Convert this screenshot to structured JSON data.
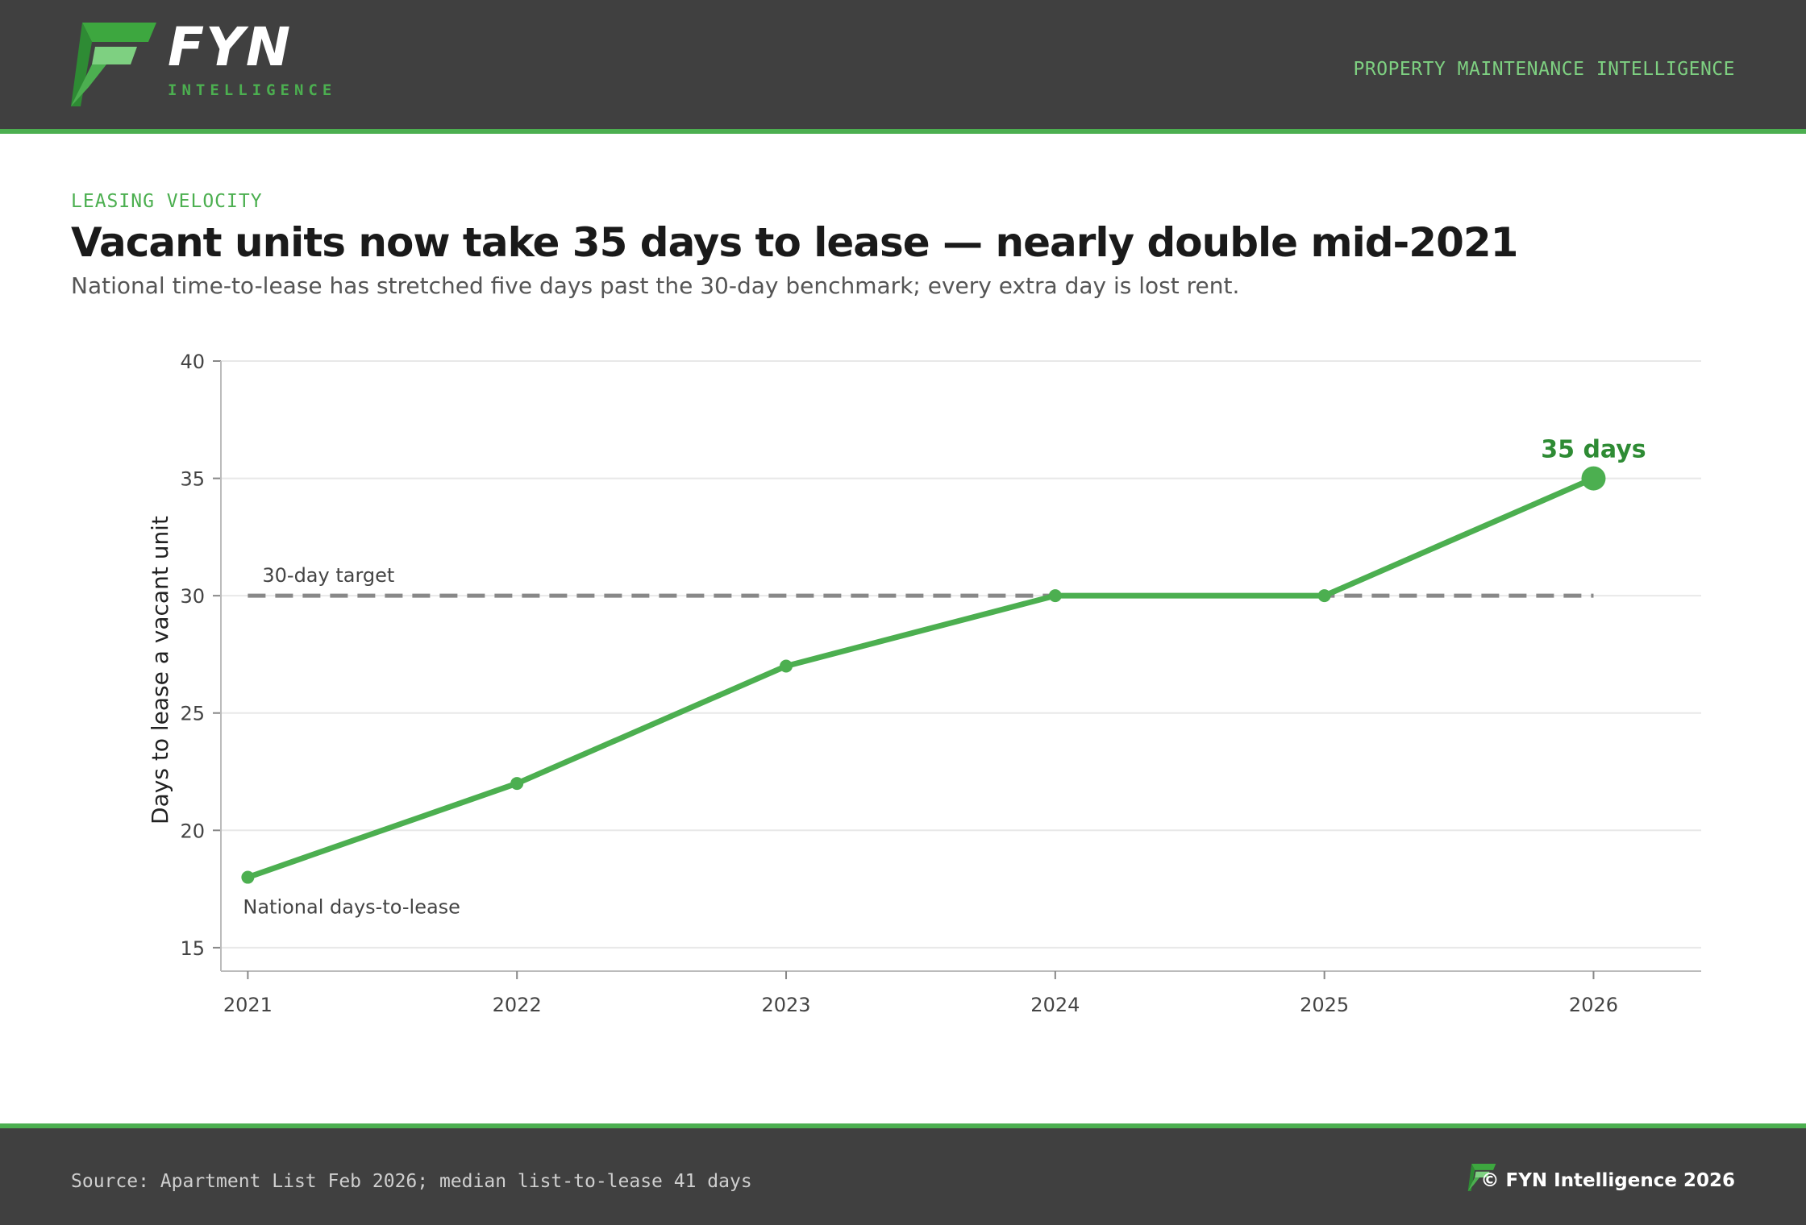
{
  "brand": {
    "name": "FYN",
    "tagline": "INTELLIGENCE",
    "header_tag": "PROPERTY MAINTENANCE INTELLIGENCE",
    "logo_icon": "fyn-f-logo-icon"
  },
  "eyebrow": "LEASING VELOCITY",
  "title": "Vacant units now take 35 days to lease — nearly double mid-2021",
  "subtitle": "National time-to-lease has stretched five days past the 30-day benchmark; every extra day is lost rent.",
  "colors": {
    "accent": "#4caf50",
    "accent_dark": "#2e8b34",
    "header_bg": "#404040",
    "target_line": "#888888"
  },
  "chart_data": {
    "type": "line",
    "x": [
      2021,
      2022,
      2023,
      2024,
      2025,
      2026
    ],
    "series": [
      {
        "name": "National days-to-lease",
        "values": [
          18,
          22,
          27,
          30,
          30,
          35
        ]
      }
    ],
    "ylabel": "Days to lease a vacant unit",
    "xlabel": "",
    "ylim": [
      15,
      40
    ],
    "yticks": [
      15,
      20,
      25,
      30,
      35,
      40
    ],
    "xticks": [
      2021,
      2022,
      2023,
      2024,
      2025,
      2026
    ],
    "target": {
      "value": 30,
      "label": "30-day target",
      "style": "dashed"
    },
    "end_label": "35 days",
    "grid": "horizontal"
  },
  "footer": {
    "source": "Source: Apartment List Feb 2026; median list-to-lease 41 days",
    "copyright": "© FYN Intelligence 2026"
  }
}
